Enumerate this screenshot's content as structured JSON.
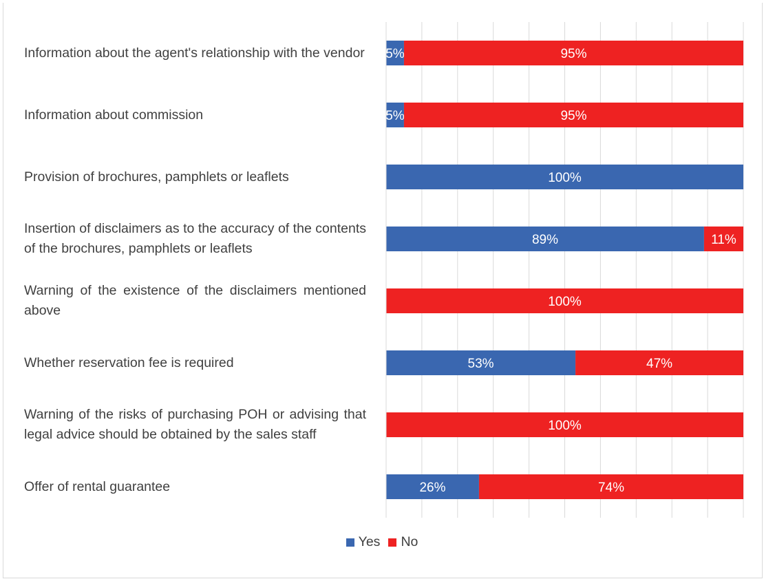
{
  "chart_data": {
    "type": "bar",
    "orientation": "horizontal",
    "stacked": true,
    "categories": [
      "Information about the agent's relationship with the vendor",
      "Information about commission",
      "Provision of brochures, pamphlets or leaflets",
      "Insertion of disclaimers as to the accuracy of the contents of the brochures, pamphlets or leaflets",
      "Warning of the existence of the disclaimers mentioned above",
      "Whether reservation fee is required",
      "Warning of the risks of purchasing POH or advising that legal advice should be obtained by the sales staff",
      "Offer of rental guarantee"
    ],
    "series": [
      {
        "name": "Yes",
        "color": "#3a67b0",
        "values": [
          5,
          5,
          100,
          89,
          0,
          53,
          0,
          26
        ],
        "labels": [
          "5%",
          "5%",
          "100%",
          "89%",
          "",
          "53%",
          "",
          "26%"
        ]
      },
      {
        "name": "No",
        "color": "#ee2222",
        "values": [
          95,
          95,
          0,
          11,
          100,
          47,
          100,
          74
        ],
        "labels": [
          "95%",
          "95%",
          "",
          "11%",
          "100%",
          "47%",
          "100%",
          "74%"
        ]
      }
    ],
    "xlim": [
      0,
      100
    ],
    "grid": true,
    "legend": "bottom-center",
    "xlabel": "",
    "ylabel": ""
  }
}
